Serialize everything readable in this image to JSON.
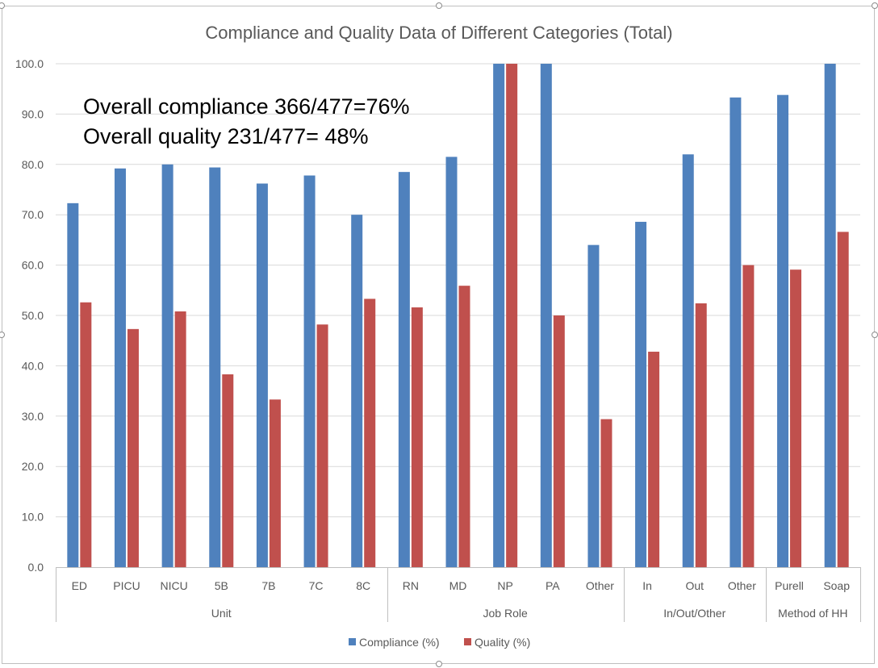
{
  "chart_data": {
    "type": "bar",
    "title": "Compliance and Quality Data of Different Categories (Total)",
    "annotations": [
      "Overall compliance 366/477=76%",
      "Overall quality 231/477= 48%"
    ],
    "categories": [
      "ED",
      "PICU",
      "NICU",
      "5B",
      "7B",
      "7C",
      "8C",
      "RN",
      "MD",
      "NP",
      "PA",
      "Other",
      "In",
      "Out",
      "Other",
      "Purell",
      "Soap"
    ],
    "groups": [
      {
        "label": "Unit",
        "count": 7
      },
      {
        "label": "Job Role",
        "count": 5
      },
      {
        "label": "In/Out/Other",
        "count": 3
      },
      {
        "label": "Method of HH",
        "count": 2
      }
    ],
    "series": [
      {
        "name": "Compliance (%)",
        "color": "#4f81bd",
        "values": [
          72.3,
          79.2,
          80.0,
          79.4,
          76.2,
          77.8,
          70.0,
          78.5,
          81.5,
          100.0,
          100.0,
          64.0,
          68.6,
          82.0,
          93.3,
          93.8,
          100.0
        ]
      },
      {
        "name": "Quality (%)",
        "color": "#c0504d",
        "values": [
          52.6,
          47.3,
          50.8,
          38.3,
          33.3,
          48.2,
          53.3,
          51.6,
          55.9,
          100.0,
          50.0,
          29.4,
          42.8,
          52.4,
          60.0,
          59.1,
          66.6
        ]
      }
    ],
    "ylim": [
      0,
      100
    ],
    "yticks": [
      "0.0",
      "10.0",
      "20.0",
      "30.0",
      "40.0",
      "50.0",
      "60.0",
      "70.0",
      "80.0",
      "90.0",
      "100.0"
    ],
    "grid": true,
    "legend_position": "bottom"
  }
}
